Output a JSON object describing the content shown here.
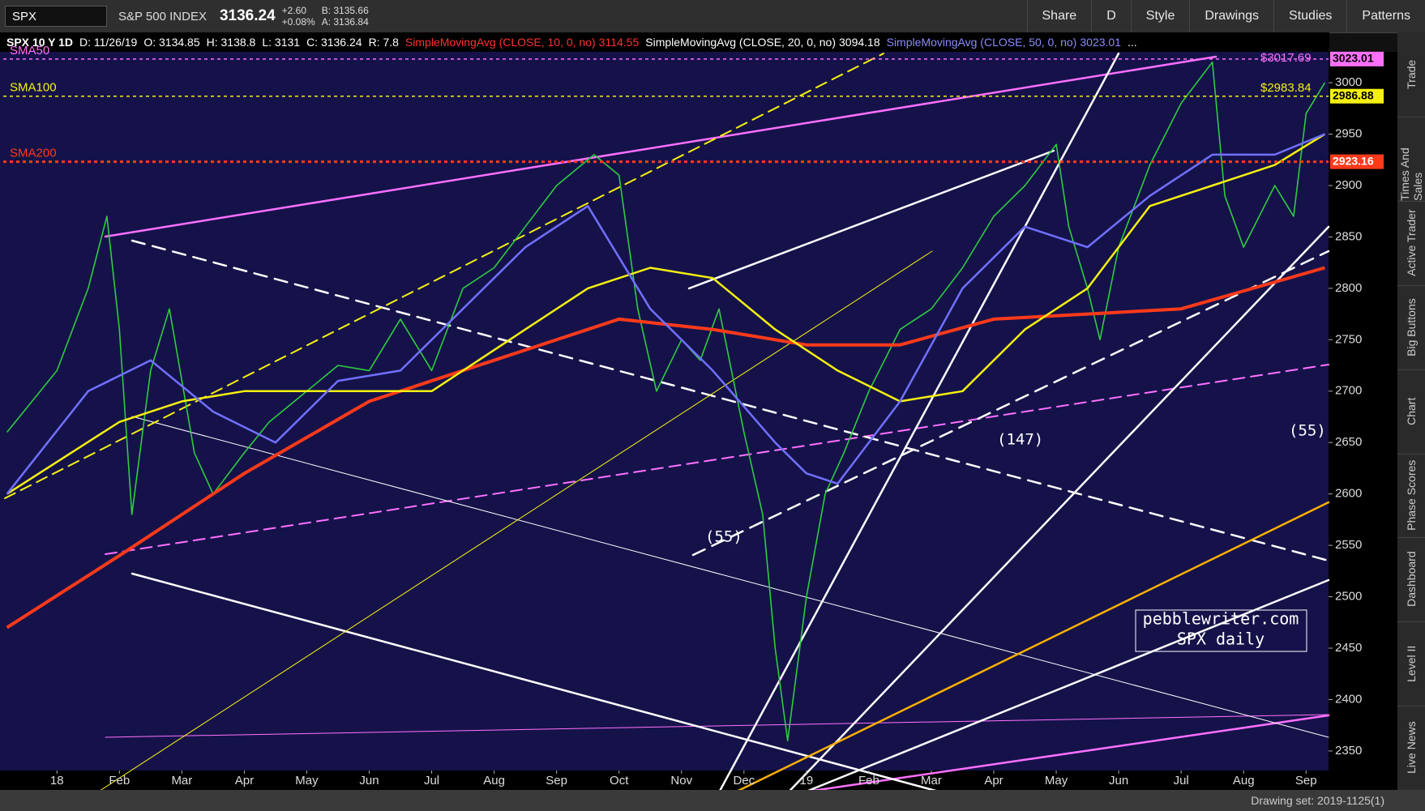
{
  "toolbar": {
    "symbol": "SPX",
    "name": "S&P 500 INDEX",
    "last": "3136.24",
    "change": "+2.60",
    "change_pct": "+0.08%",
    "bid": "B: 3135.66",
    "ask": "A: 3136.84",
    "buttons": [
      "Share",
      "D",
      "Style",
      "Drawings",
      "Studies",
      "Patterns"
    ]
  },
  "header": {
    "title": "SPX 10 Y 1D",
    "fields": [
      "D: 11/26/19",
      "O: 3134.85",
      "H: 3138.8",
      "L: 3131",
      "C: 3136.24",
      "R: 7.8"
    ],
    "studies": [
      {
        "name": "SimpleMovingAvg (CLOSE, 10, 0, no)",
        "value": "3114.55",
        "color": "#ff3030"
      },
      {
        "name": "SimpleMovingAvg (CLOSE, 20, 0, no)",
        "value": "3094.18",
        "color": "#ffffff"
      },
      {
        "name": "SimpleMovingAvg (CLOSE, 50, 0, no)",
        "value": "3023.01",
        "color": "#8a8aff"
      }
    ],
    "more": "..."
  },
  "chart": {
    "ylim": [
      2331,
      3030
    ],
    "yticks": [
      2350,
      2400,
      2450,
      2500,
      2550,
      2600,
      2650,
      2700,
      2750,
      2800,
      2850,
      2900,
      2950,
      3000
    ],
    "xlim": [
      -0.86,
      20.36
    ],
    "xticks": [
      {
        "value": 0,
        "label": "18"
      },
      {
        "value": 1,
        "label": "Feb"
      },
      {
        "value": 2,
        "label": "Mar"
      },
      {
        "value": 3,
        "label": "Apr"
      },
      {
        "value": 4,
        "label": "May"
      },
      {
        "value": 5,
        "label": "Jun"
      },
      {
        "value": 6,
        "label": "Jul"
      },
      {
        "value": 7,
        "label": "Aug"
      },
      {
        "value": 8,
        "label": "Sep"
      },
      {
        "value": 9,
        "label": "Oct"
      },
      {
        "value": 10,
        "label": "Nov"
      },
      {
        "value": 11,
        "label": "Dec"
      },
      {
        "value": 12,
        "label": "19"
      },
      {
        "value": 13,
        "label": "Feb"
      },
      {
        "value": 14,
        "label": "Mar"
      },
      {
        "value": 15,
        "label": "Apr"
      },
      {
        "value": 16,
        "label": "May"
      },
      {
        "value": 17,
        "label": "Jun"
      },
      {
        "value": 18,
        "label": "Jul"
      },
      {
        "value": 19,
        "label": "Aug"
      },
      {
        "value": 20,
        "label": "Sep"
      }
    ],
    "lines": [
      {
        "color": "#2ecc40",
        "width": 1.6,
        "x": [
          -0.8,
          0,
          0.5,
          0.8,
          1.0,
          1.2,
          1.5,
          1.8,
          2.2,
          2.5,
          3.0,
          3.4,
          4.0,
          4.5,
          5.0,
          5.5,
          6.0,
          6.5,
          7.0,
          7.5,
          8.0,
          8.6,
          9.0,
          9.3,
          9.6,
          10.0,
          10.3,
          10.6,
          11.0,
          11.3,
          11.5,
          11.7,
          12.0,
          12.3,
          12.6,
          13.0,
          13.5,
          14.0,
          14.5,
          15.0,
          15.5,
          16.0,
          16.2,
          16.5,
          16.7,
          17.0,
          17.5,
          18.0,
          18.5,
          18.7,
          19.0,
          19.5,
          19.8,
          20.0,
          20.3
        ],
        "y": [
          2660,
          2720,
          2800,
          2870,
          2760,
          2580,
          2720,
          2780,
          2640,
          2600,
          2640,
          2670,
          2700,
          2725,
          2720,
          2770,
          2720,
          2800,
          2820,
          2860,
          2900,
          2930,
          2910,
          2780,
          2700,
          2750,
          2730,
          2780,
          2660,
          2580,
          2450,
          2360,
          2500,
          2600,
          2640,
          2700,
          2760,
          2780,
          2820,
          2870,
          2900,
          2940,
          2860,
          2800,
          2750,
          2840,
          2920,
          2980,
          3020,
          2890,
          2840,
          2900,
          2870,
          2970,
          3000
        ]
      },
      {
        "color": "#ff3a1a",
        "width": 4,
        "x": [
          -0.8,
          1.0,
          3.0,
          5.0,
          7.0,
          9.0,
          10.5,
          12.0,
          13.5,
          15.0,
          16.5,
          18.0,
          20.3
        ],
        "y": [
          2470,
          2540,
          2620,
          2690,
          2730,
          2770,
          2760,
          2745,
          2745,
          2770,
          2775,
          2780,
          2820
        ]
      },
      {
        "color": "#f5f010",
        "width": 2.5,
        "x": [
          -0.8,
          1.0,
          2.0,
          3.0,
          4.5,
          6.0,
          7.5,
          8.5,
          9.5,
          10.5,
          11.5,
          12.5,
          13.5,
          14.5,
          15.5,
          16.5,
          17.5,
          18.5,
          19.5,
          20.3
        ],
        "y": [
          2600,
          2670,
          2690,
          2700,
          2700,
          2700,
          2760,
          2800,
          2820,
          2810,
          2760,
          2720,
          2690,
          2700,
          2760,
          2800,
          2880,
          2900,
          2920,
          2950
        ]
      },
      {
        "color": "#7070ff",
        "width": 2.5,
        "x": [
          -0.8,
          0.5,
          1.5,
          2.5,
          3.5,
          4.5,
          5.5,
          6.5,
          7.5,
          8.5,
          9.5,
          10.5,
          11.5,
          12.0,
          12.5,
          13.5,
          14.5,
          15.5,
          16.5,
          17.5,
          18.5,
          19.5,
          20.3
        ],
        "y": [
          2600,
          2700,
          2730,
          2680,
          2650,
          2710,
          2720,
          2780,
          2840,
          2880,
          2780,
          2720,
          2650,
          2620,
          2610,
          2690,
          2800,
          2860,
          2840,
          2890,
          2930,
          2930,
          2950
        ]
      }
    ],
    "levels": [
      {
        "label": "SMA50",
        "value": 3023.01,
        "color": "#ff70ff",
        "text_color": "#000000"
      },
      {
        "label": "SMA100",
        "value": 2986.88,
        "color": "#f5f010",
        "text_color": "#000000"
      },
      {
        "label": "SMA200",
        "value": 2923.16,
        "color": "#ff3a1a",
        "text_color": "#ffffff"
      }
    ],
    "inline_labels": [
      {
        "text": "$3017.69",
        "color": "#ff70ff"
      },
      {
        "text": "$2983.84",
        "color": "#f5f010"
      }
    ],
    "annotations": [
      "(55)",
      "(147)",
      "(55)"
    ],
    "watermark": [
      "pebblewriter.com",
      "SPX daily"
    ]
  },
  "side_tabs": [
    "Trade",
    "Times And Sales",
    "Active Trader",
    "Big Buttons",
    "Chart",
    "Phase Scores",
    "Dashboard",
    "Level II",
    "Live News"
  ],
  "status": "Drawing set: 2019-1125(1)"
}
